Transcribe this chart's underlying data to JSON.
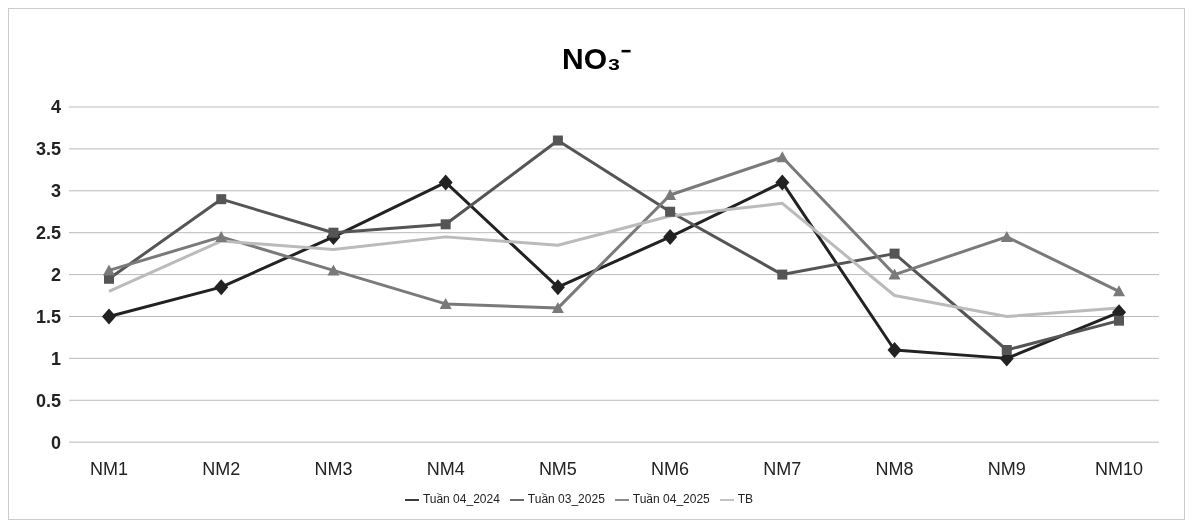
{
  "chart_data": {
    "type": "line",
    "title": "NO₃⁻",
    "categories": [
      "NM1",
      "NM2",
      "NM3",
      "NM4",
      "NM5",
      "NM6",
      "NM7",
      "NM8",
      "NM9",
      "NM10"
    ],
    "series": [
      {
        "name": "Tuần 04_2024",
        "color": "#222222",
        "marker": "diamond",
        "values": [
          1.5,
          1.85,
          2.45,
          3.1,
          1.85,
          2.45,
          3.1,
          1.1,
          1.0,
          1.55
        ]
      },
      {
        "name": "Tuần 03_2025",
        "color": "#555555",
        "marker": "square",
        "values": [
          1.95,
          2.9,
          2.5,
          2.6,
          3.6,
          2.75,
          2.0,
          2.25,
          1.1,
          1.45
        ]
      },
      {
        "name": "Tuần 04_2025",
        "color": "#7a7a7a",
        "marker": "triangle",
        "values": [
          2.05,
          2.45,
          2.05,
          1.65,
          1.6,
          2.95,
          3.4,
          2.0,
          2.45,
          1.8
        ]
      },
      {
        "name": "TB",
        "color": "#bbbbbb",
        "marker": "none",
        "values": [
          1.8,
          2.4,
          2.3,
          2.45,
          2.35,
          2.7,
          2.85,
          1.75,
          1.5,
          1.6
        ]
      }
    ],
    "ylim": [
      0,
      4
    ],
    "yticks": [
      0,
      0.5,
      1,
      1.5,
      2,
      2.5,
      3,
      3.5,
      4
    ],
    "grid": "y",
    "legend": "bottom"
  }
}
